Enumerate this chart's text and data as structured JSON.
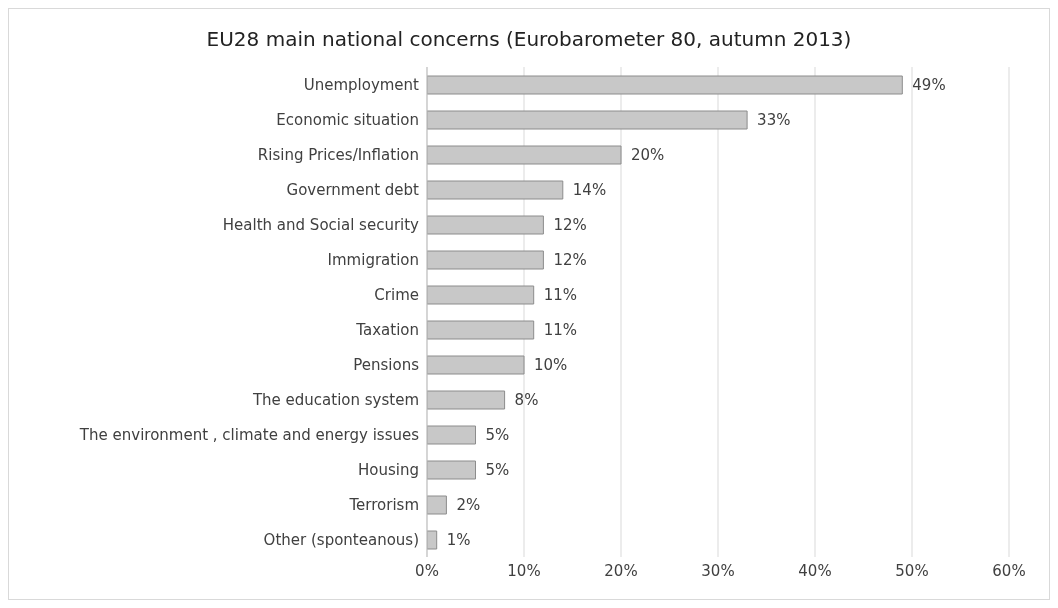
{
  "chart_data": {
    "type": "bar",
    "orientation": "horizontal",
    "title": "EU28 main national concerns (Eurobarometer  80, autumn 2013)",
    "categories": [
      "Unemployment",
      "Economic situation",
      "Rising Prices/Inflation",
      "Government debt",
      "Health and Social security",
      "Immigration",
      "Crime",
      "Taxation",
      "Pensions",
      "The education system",
      "The environment , climate and energy issues",
      "Housing",
      "Terrorism",
      "Other (sponteanous)"
    ],
    "values": [
      49,
      33,
      20,
      14,
      12,
      12,
      11,
      11,
      10,
      8,
      5,
      5,
      2,
      1
    ],
    "value_labels": [
      "49%",
      "33%",
      "20%",
      "14%",
      "12%",
      "12%",
      "11%",
      "11%",
      "10%",
      "8%",
      "5%",
      "5%",
      "2%",
      "1%"
    ],
    "color": "#c8c8c8",
    "xlim": [
      0,
      60
    ],
    "xticks": [
      {
        "value": 0,
        "label": "0%"
      },
      {
        "value": 10,
        "label": "10%"
      },
      {
        "value": 20,
        "label": "20%"
      },
      {
        "value": 30,
        "label": "30%"
      },
      {
        "value": 40,
        "label": "40%"
      },
      {
        "value": 50,
        "label": "50%"
      },
      {
        "value": 60,
        "label": "60%"
      }
    ],
    "grid": "x"
  }
}
